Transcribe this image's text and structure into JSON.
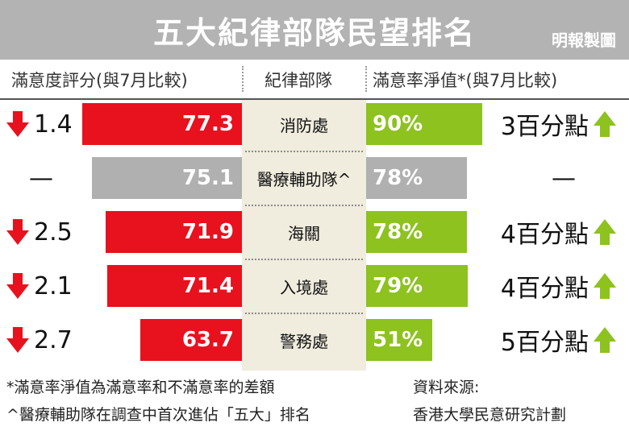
{
  "header": {
    "title": "五大紀律部隊民望排名",
    "credit": "明報製圖"
  },
  "columns": {
    "left": "滿意度評分(與7月比較)",
    "center": "紀律部隊",
    "right": "滿意率淨值*(與7月比較)"
  },
  "colors": {
    "score_bar": "#e8111e",
    "score_bar_neutral": "#b0b0b0",
    "net_bar": "#8dc21f",
    "net_bar_neutral": "#b0b0b0",
    "down_arrow": "#e8111e",
    "up_arrow": "#8dc21f"
  },
  "chart_data": {
    "type": "bar",
    "categories": [
      "消防處",
      "醫療輔助隊^",
      "海關",
      "入境處",
      "警務處"
    ],
    "series": [
      {
        "name": "滿意度評分",
        "values": [
          77.3,
          75.1,
          71.9,
          71.4,
          63.7
        ],
        "labels": [
          "77.3",
          "75.1",
          "71.9",
          "71.4",
          "63.7"
        ],
        "change_vs_july": [
          "1.4",
          "—",
          "2.5",
          "2.1",
          "2.7"
        ],
        "change_direction": [
          "down",
          "none",
          "down",
          "down",
          "down"
        ]
      },
      {
        "name": "滿意率淨值",
        "values": [
          90,
          78,
          78,
          79,
          51
        ],
        "labels": [
          "90%",
          "78%",
          "78%",
          "79%",
          "51%"
        ],
        "change_vs_july": [
          "3百分點",
          "—",
          "4百分點",
          "4百分點",
          "5百分點"
        ],
        "change_direction": [
          "up",
          "none",
          "up",
          "up",
          "up"
        ]
      }
    ],
    "neutral_index": 1,
    "score_range": [
      0,
      100
    ],
    "net_range": [
      0,
      100
    ]
  },
  "footnotes": {
    "note1": "*滿意率淨值為滿意率和不滿意率的差額",
    "note2": "^醫療輔助隊在調查中首次進佔「五大」排名",
    "source_label": "資料來源:",
    "source": "香港大學民意研究計劃"
  }
}
